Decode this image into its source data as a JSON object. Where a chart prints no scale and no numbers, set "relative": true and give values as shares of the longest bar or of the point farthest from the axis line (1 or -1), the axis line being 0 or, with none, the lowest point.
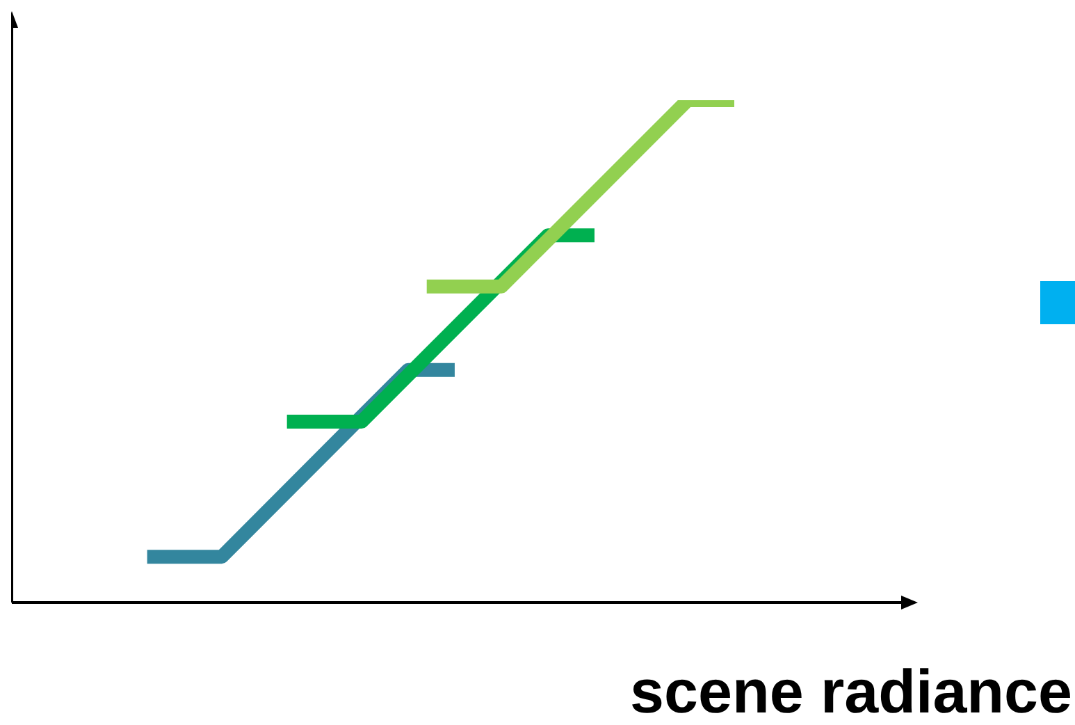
{
  "chart_data": {
    "type": "line",
    "relative": true,
    "xlabel": "scene radiance",
    "categories": [
      null,
      null,
      null,
      null,
      null,
      null,
      null,
      null,
      null,
      null,
      null,
      null,
      null,
      null,
      null,
      null,
      null,
      null,
      null,
      null,
      null,
      null,
      null,
      null,
      null,
      null,
      null,
      null,
      null,
      null,
      null,
      null,
      null,
      null,
      null,
      null,
      null,
      null,
      null,
      null,
      null,
      null,
      null,
      null,
      null,
      null,
      null,
      null,
      null,
      null,
      null,
      null,
      null,
      null,
      null,
      null,
      null,
      null,
      null,
      null,
      null,
      null,
      null,
      null,
      null,
      null,
      null,
      null,
      null,
      null,
      null,
      null,
      null,
      null,
      null,
      null,
      null,
      null
    ],
    "series": [
      {
        "color": "#33869e",
        "values": [
          null,
          null,
          null,
          null,
          null,
          null,
          null,
          null,
          null,
          null,
          null,
          null,
          null,
          null,
          0.091,
          null,
          null,
          null,
          null,
          null,
          null,
          null,
          0.091,
          null,
          null,
          null,
          null,
          null,
          null,
          null,
          null,
          null,
          null,
          null,
          null,
          null,
          null,
          null,
          null,
          null,
          null,
          null,
          0.463,
          null,
          null,
          null,
          null,
          0.463,
          null,
          null,
          null,
          null,
          null,
          null,
          null,
          null,
          null,
          null,
          null,
          null,
          null,
          null,
          null,
          null,
          null,
          null,
          null,
          null,
          null,
          null,
          null,
          null,
          null,
          null,
          null,
          null,
          null,
          null
        ]
      },
      {
        "color": "#00b050",
        "values": [
          null,
          null,
          null,
          null,
          null,
          null,
          null,
          null,
          null,
          null,
          null,
          null,
          null,
          null,
          null,
          null,
          null,
          null,
          null,
          null,
          null,
          null,
          null,
          null,
          null,
          null,
          null,
          null,
          null,
          0.36,
          null,
          null,
          null,
          null,
          null,
          null,
          null,
          0.36,
          null,
          null,
          null,
          null,
          null,
          null,
          null,
          null,
          null,
          null,
          null,
          null,
          null,
          null,
          null,
          null,
          null,
          null,
          null,
          0.731,
          null,
          null,
          null,
          null,
          0.731,
          null,
          null,
          null,
          null,
          null,
          null,
          null,
          null,
          null,
          null,
          null,
          null,
          null,
          null,
          null
        ]
      },
      {
        "color": "#92d050",
        "values": [
          null,
          null,
          null,
          null,
          null,
          null,
          null,
          null,
          null,
          null,
          null,
          null,
          null,
          null,
          null,
          null,
          null,
          null,
          null,
          null,
          null,
          null,
          null,
          null,
          null,
          null,
          null,
          null,
          null,
          null,
          null,
          null,
          null,
          null,
          null,
          null,
          null,
          null,
          null,
          null,
          null,
          null,
          null,
          null,
          0.629,
          null,
          null,
          null,
          null,
          null,
          null,
          null,
          0.629,
          null,
          null,
          null,
          null,
          null,
          null,
          null,
          null,
          null,
          null,
          null,
          null,
          null,
          null,
          null,
          null,
          null,
          null,
          null,
          1,
          null,
          null,
          null,
          null,
          1
        ]
      }
    ]
  }
}
